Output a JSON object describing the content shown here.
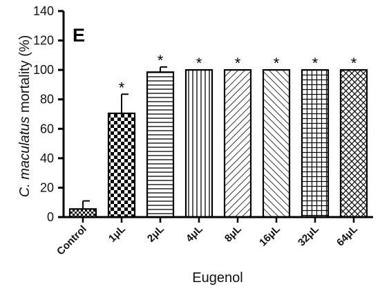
{
  "chart_data": {
    "type": "bar",
    "panel_label": "E",
    "ylabel_italic": "C. maculatus",
    "ylabel_rest": " mortality (%)",
    "xlabel": "Eugenol",
    "ylim": [
      0,
      140
    ],
    "yticks": [
      0,
      20,
      40,
      60,
      80,
      100,
      120,
      140
    ],
    "categories": [
      "Control",
      "1μL",
      "2μL",
      "4μL",
      "8μL",
      "16μL",
      "32μL",
      "64μL"
    ],
    "values": [
      5.5,
      70.5,
      98.5,
      100,
      100,
      100,
      100,
      100
    ],
    "errors": [
      5.5,
      13,
      3.5,
      0,
      0,
      0,
      0,
      0
    ],
    "significance": [
      "",
      "*",
      "*",
      "*",
      "*",
      "*",
      "*",
      "*"
    ],
    "patterns": [
      "small-checker",
      "checker",
      "horizontal",
      "vertical",
      "diag-right",
      "diag-left",
      "grid",
      "crosshatch"
    ]
  }
}
